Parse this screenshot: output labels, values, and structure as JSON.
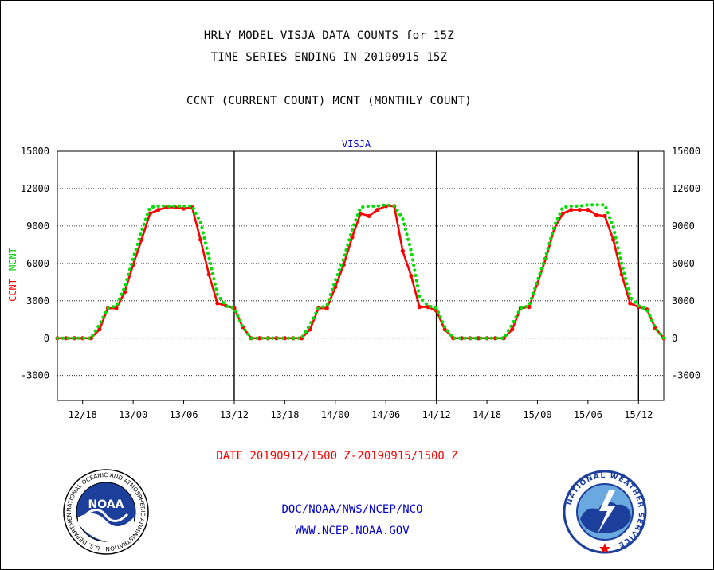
{
  "header": {
    "title_line1": "HRLY MODEL VISJA DATA COUNTS for 15Z",
    "title_line2": "TIME SERIES ENDING IN 20190915 15Z",
    "title_line3": "CCNT (CURRENT COUNT) MCNT (MONTHLY COUNT)"
  },
  "footer": {
    "date_range": "DATE 20190912/1500 Z-20190915/1500 Z",
    "credit": "DOC/NOAA/NWS/NCEP/NCO",
    "url": "WWW.NCEP.NOAA.GOV"
  },
  "logos": {
    "noaa_text": "NOAA",
    "noaa_ring_text": "NATIONAL OCEANIC AND ATMOSPHERIC ADMINISTRATION · U.S. DEPARTMENT OF COMMERCE ·",
    "nws_ring_text": "NATIONAL WEATHER SERVICE",
    "noaa_icon": "noaa-emblem",
    "nws_icon": "nws-emblem"
  },
  "chart_data": {
    "type": "line",
    "title": "VISJA",
    "ylabel_left": "CCNT",
    "ylabel_right": "MCNT",
    "ylim": [
      -5000,
      15000
    ],
    "yticks": [
      -3000,
      0,
      3000,
      6000,
      9000,
      12000,
      15000
    ],
    "ytick_labels": [
      "-3000",
      "0",
      "3000",
      "6000",
      "9000",
      "12000",
      "15000"
    ],
    "xlim": [
      -3,
      69
    ],
    "xticks": [
      0,
      6,
      12,
      18,
      24,
      30,
      36,
      42,
      48,
      54,
      60,
      66
    ],
    "xtick_labels": [
      "12/18",
      "13/00",
      "13/06",
      "13/12",
      "13/18",
      "14/00",
      "14/06",
      "14/12",
      "14/18",
      "15/00",
      "15/06",
      "15/12"
    ],
    "day_separators": [
      18,
      42,
      66
    ],
    "grid": true,
    "series": [
      {
        "name": "CCNT",
        "color": "#ff0000",
        "style": "solid",
        "x": [
          -3,
          -2,
          -1,
          0,
          1,
          2,
          3,
          4,
          5,
          6,
          7,
          8,
          9,
          10,
          11,
          12,
          13,
          14,
          15,
          16,
          17,
          18,
          19,
          20,
          21,
          22,
          23,
          24,
          25,
          26,
          27,
          28,
          29,
          30,
          31,
          32,
          33,
          34,
          35,
          36,
          37,
          38,
          39,
          40,
          41,
          42,
          43,
          44,
          45,
          46,
          47,
          48,
          49,
          50,
          51,
          52,
          53,
          54,
          55,
          56,
          57,
          58,
          59,
          60,
          61,
          62,
          63,
          64,
          65,
          66,
          67,
          68,
          69
        ],
        "values": [
          0,
          0,
          0,
          0,
          0,
          700,
          2400,
          2400,
          3700,
          5900,
          7900,
          10000,
          10300,
          10500,
          10500,
          10400,
          10500,
          7900,
          5100,
          2800,
          2600,
          2400,
          900,
          0,
          0,
          0,
          0,
          0,
          0,
          0,
          700,
          2400,
          2400,
          4100,
          5900,
          8100,
          10000,
          9800,
          10300,
          10600,
          10600,
          7000,
          5000,
          2500,
          2500,
          2200,
          700,
          0,
          0,
          0,
          0,
          0,
          0,
          0,
          700,
          2400,
          2500,
          4400,
          6400,
          8800,
          10000,
          10300,
          10300,
          10300,
          9900,
          9800,
          7900,
          5100,
          2800,
          2500,
          2300,
          800,
          0
        ]
      },
      {
        "name": "MCNT",
        "color": "#00dd00",
        "style": "dotted",
        "x": [
          -3,
          -2,
          -1,
          0,
          1,
          2,
          3,
          4,
          5,
          6,
          7,
          8,
          9,
          10,
          11,
          12,
          13,
          14,
          15,
          16,
          17,
          18,
          19,
          20,
          21,
          22,
          23,
          24,
          25,
          26,
          27,
          28,
          29,
          30,
          31,
          32,
          33,
          34,
          35,
          36,
          37,
          38,
          39,
          40,
          41,
          42,
          43,
          44,
          45,
          46,
          47,
          48,
          49,
          50,
          51,
          52,
          53,
          54,
          55,
          56,
          57,
          58,
          59,
          60,
          61,
          62,
          63,
          64,
          65,
          66,
          67,
          68,
          69
        ],
        "values": [
          0,
          0,
          0,
          0,
          0,
          1100,
          2400,
          2600,
          4100,
          6400,
          8600,
          10500,
          10600,
          10600,
          10600,
          10600,
          10600,
          9300,
          6500,
          3500,
          2600,
          2400,
          900,
          0,
          0,
          0,
          0,
          0,
          0,
          0,
          1100,
          2400,
          2600,
          4600,
          6400,
          8700,
          10500,
          10600,
          10600,
          10700,
          10600,
          9600,
          7000,
          3300,
          2600,
          2400,
          900,
          0,
          0,
          0,
          0,
          0,
          0,
          0,
          1100,
          2400,
          2600,
          4600,
          6600,
          9000,
          10500,
          10600,
          10600,
          10700,
          10700,
          10700,
          8900,
          6000,
          3300,
          2600,
          2300,
          800,
          0
        ]
      }
    ]
  }
}
